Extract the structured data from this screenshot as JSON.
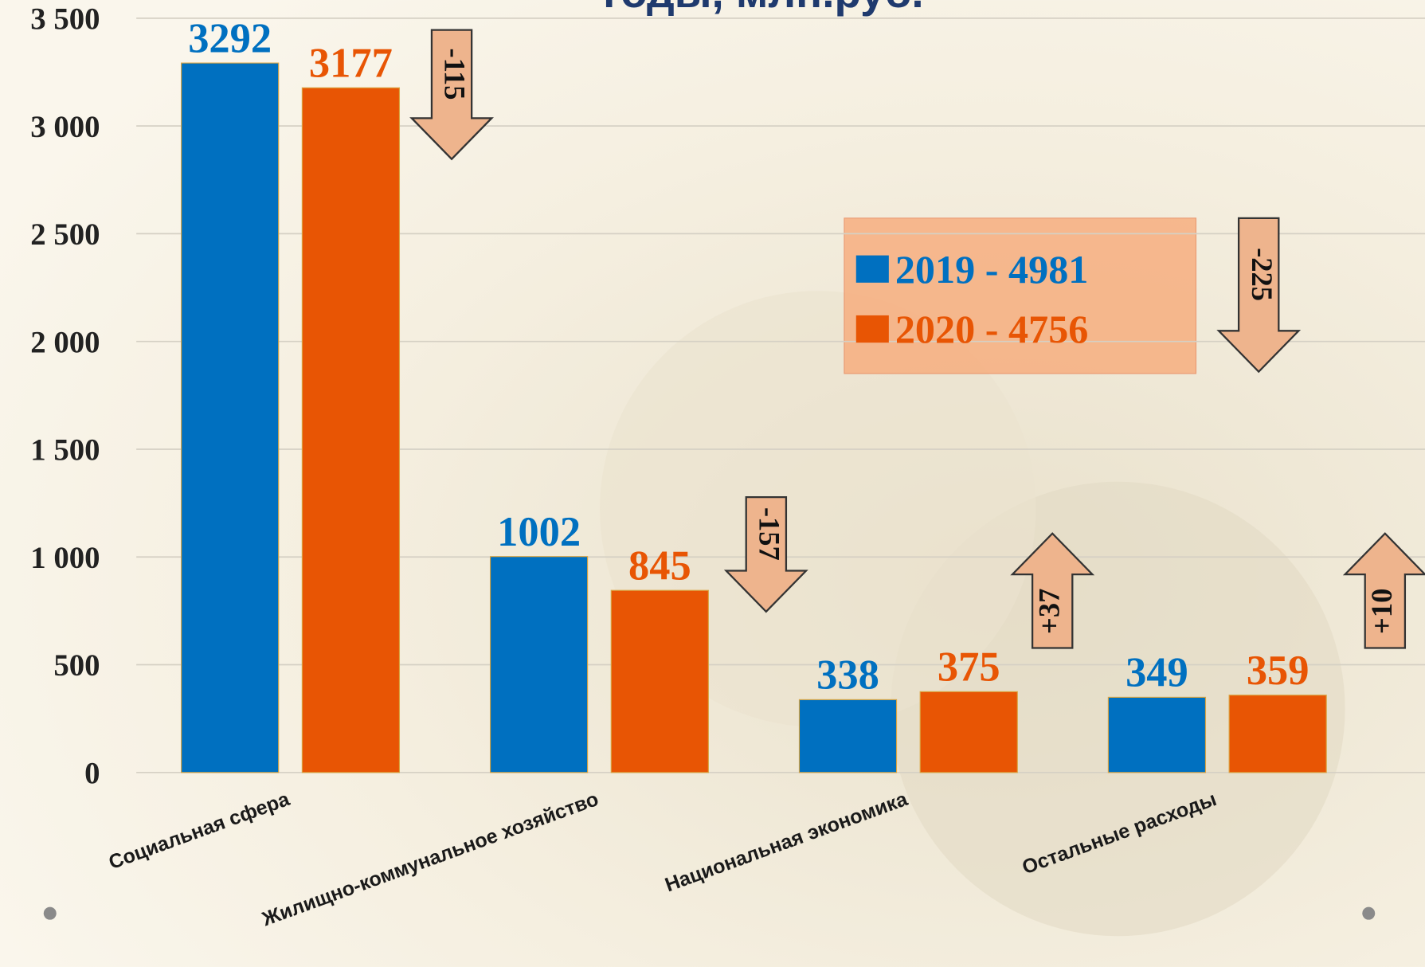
{
  "chart_data": {
    "type": "bar",
    "title": "годы, млн.руб.",
    "categories": [
      "Социальная сфера",
      "Жилищно-коммунальное хозяйство",
      "Национальная экономика",
      "Остальные расходы"
    ],
    "series": [
      {
        "name": "2019 - 4981",
        "color": "#0070c0",
        "values": [
          3292,
          1002,
          338,
          349
        ]
      },
      {
        "name": "2020 - 4756",
        "color": "#e85504",
        "values": [
          3177,
          845,
          375,
          359
        ]
      }
    ],
    "ylim": [
      0,
      3500
    ],
    "yticks": [
      0,
      500,
      {
        "value": 1000,
        "label": "1 000"
      },
      {
        "value": 1500,
        "label": "1 500"
      },
      {
        "value": 2000,
        "label": "2 000"
      },
      {
        "value": 2500,
        "label": "2 500"
      },
      {
        "value": 3000,
        "label": "3 000"
      },
      {
        "value": 3500,
        "label": "3 500"
      }
    ],
    "grid": true,
    "annotations": [
      {
        "text": "-115"
      },
      {
        "text": "-157"
      },
      {
        "text": "+37"
      },
      {
        "text": "-225"
      },
      {
        "text": "+10"
      }
    ]
  }
}
